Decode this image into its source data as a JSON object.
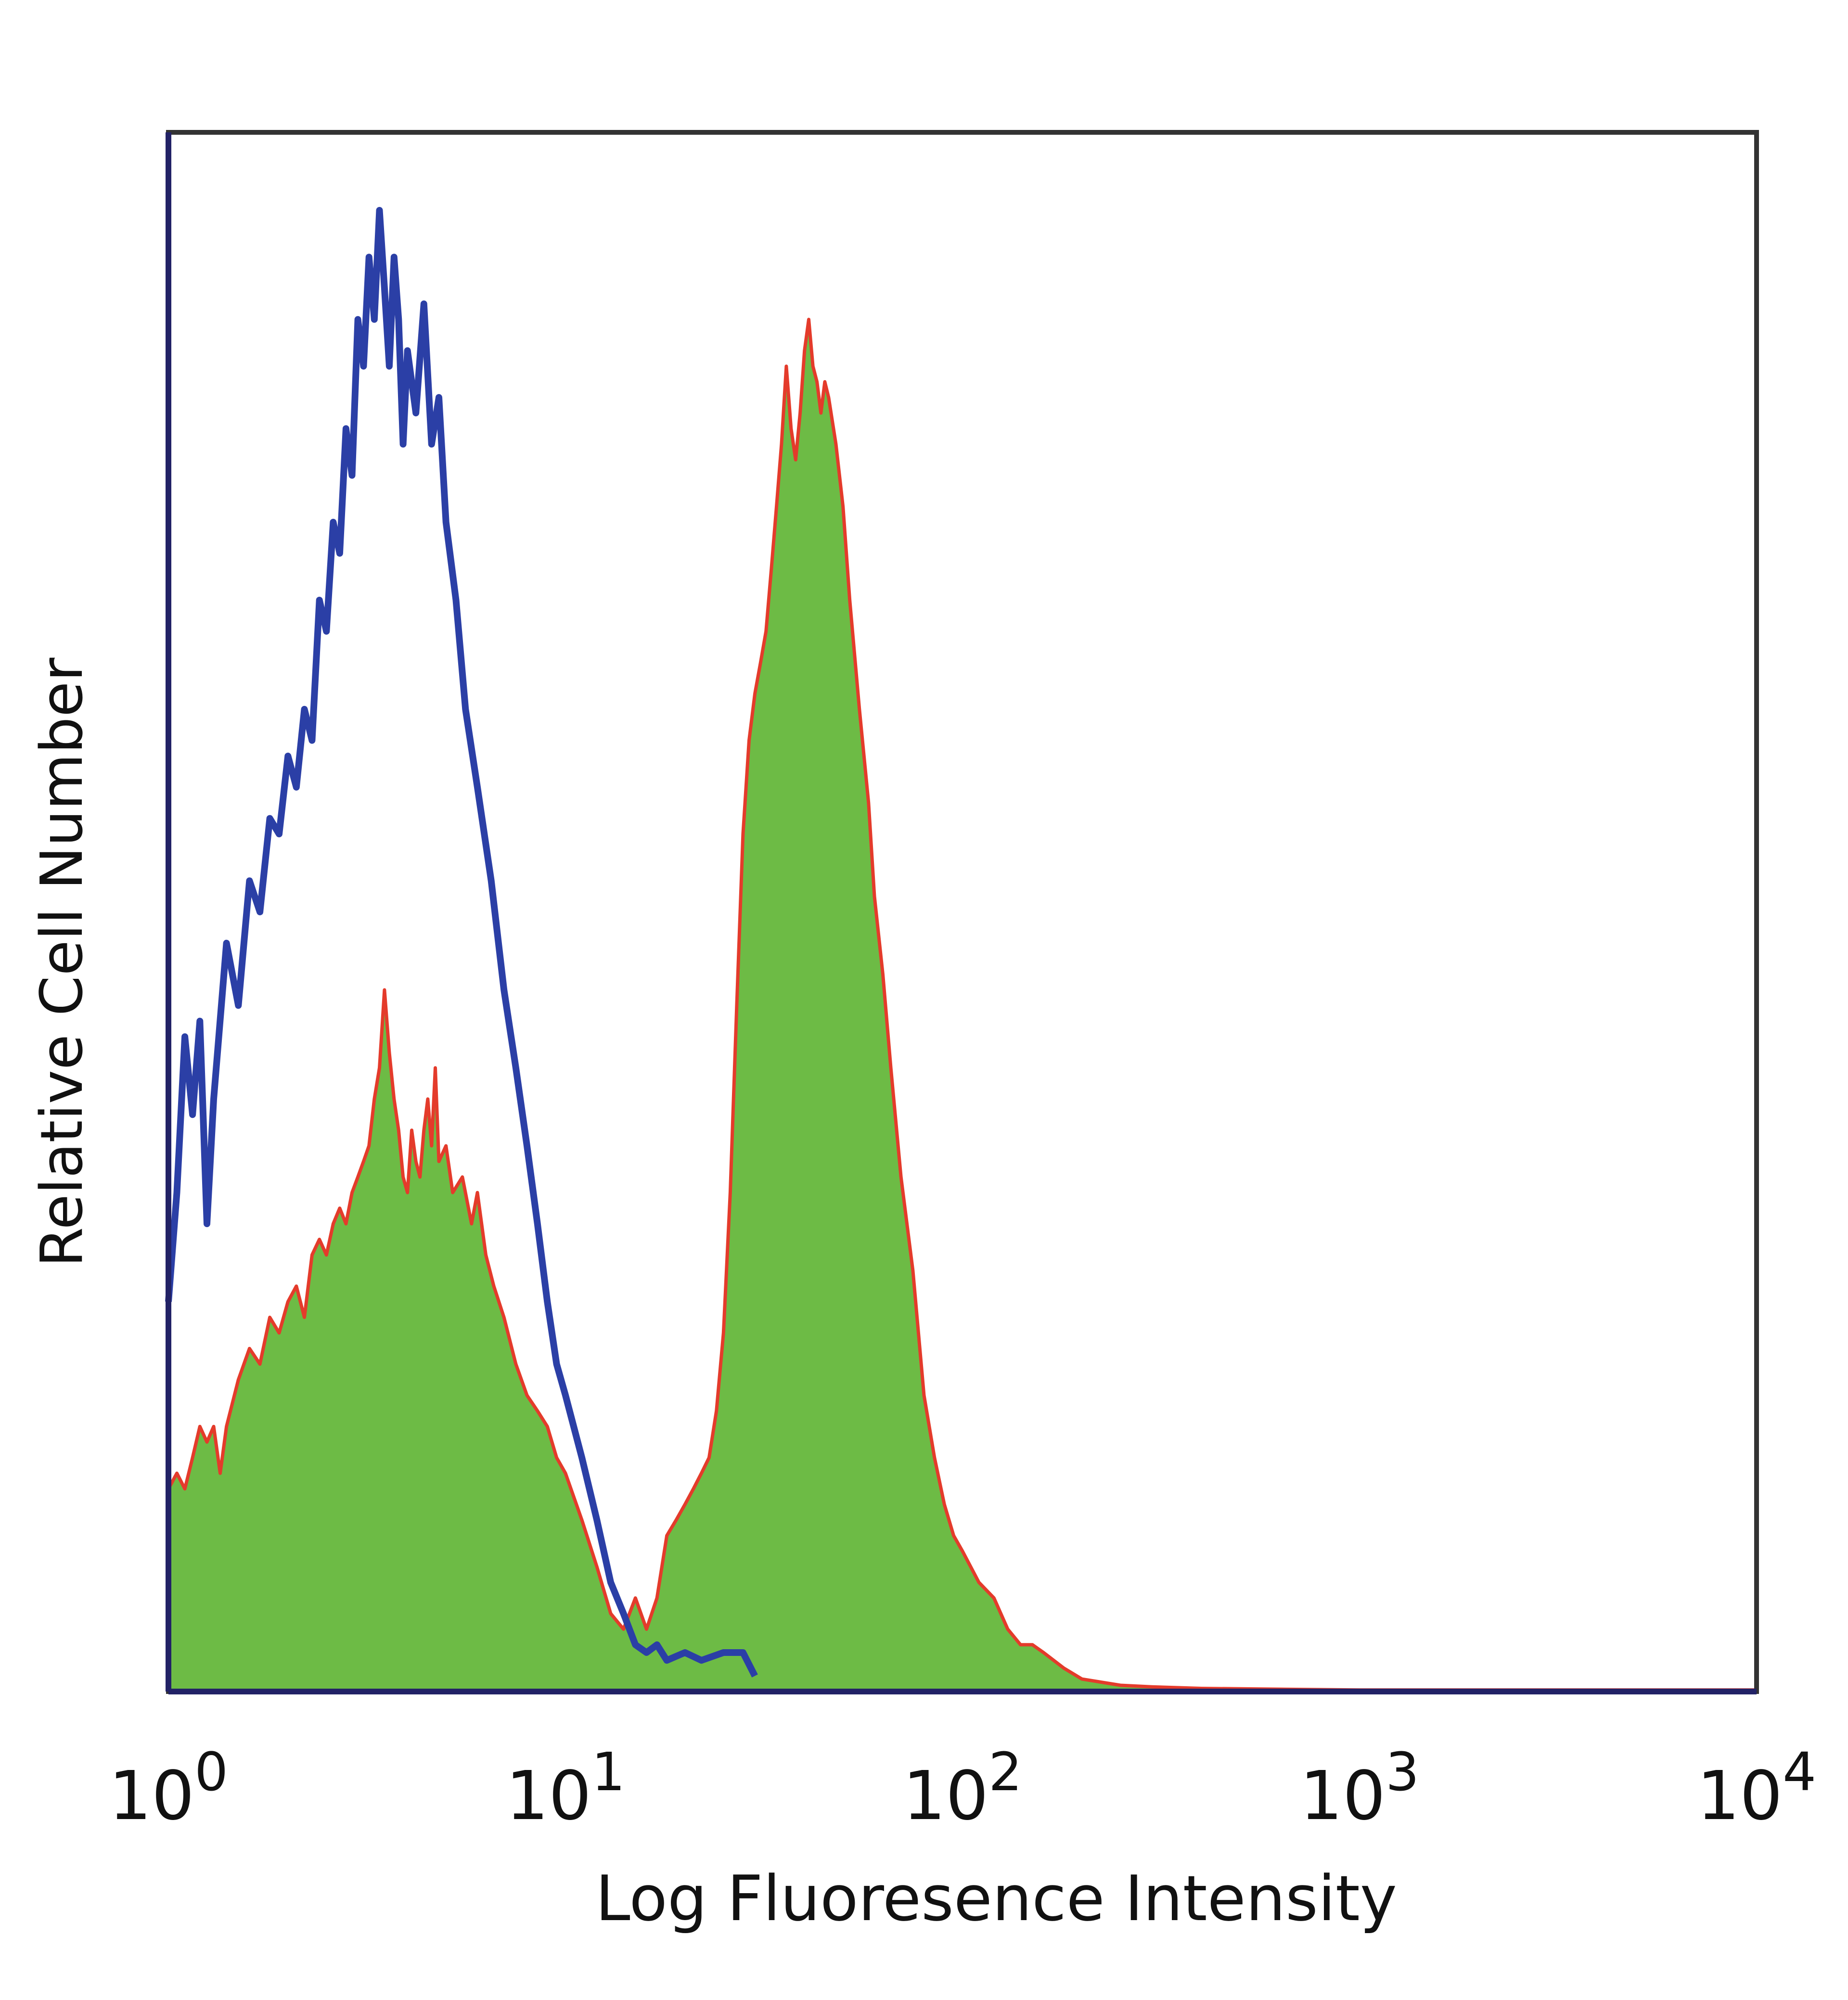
{
  "chart_data": {
    "type": "area",
    "xlabel": "Log Fluoresence Intensity",
    "ylabel": "Relative Cell Number",
    "x_scale": "log",
    "xlim": [
      1,
      10000
    ],
    "ylim": [
      0,
      100
    ],
    "grid": false,
    "x_ticks": [
      {
        "base": "10",
        "exp": "0",
        "value": 1
      },
      {
        "base": "10",
        "exp": "1",
        "value": 10
      },
      {
        "base": "10",
        "exp": "2",
        "value": 100
      },
      {
        "base": "10",
        "exp": "3",
        "value": 1000
      },
      {
        "base": "10",
        "exp": "4",
        "value": 10000
      }
    ],
    "colors": {
      "frame": "#333333",
      "baseline": "#222266",
      "control_line": "#2b3fa6",
      "sample_fill": "#6dbb45",
      "sample_edge": "#e43b2b"
    },
    "series": [
      {
        "style": "outline",
        "color": "#2b3fa6",
        "points": [
          [
            1.0,
            25
          ],
          [
            1.05,
            32
          ],
          [
            1.1,
            42
          ],
          [
            1.15,
            37
          ],
          [
            1.2,
            43
          ],
          [
            1.25,
            30
          ],
          [
            1.3,
            38
          ],
          [
            1.4,
            48
          ],
          [
            1.5,
            44
          ],
          [
            1.6,
            52
          ],
          [
            1.7,
            50
          ],
          [
            1.8,
            56
          ],
          [
            1.9,
            55
          ],
          [
            2.0,
            60
          ],
          [
            2.1,
            58
          ],
          [
            2.2,
            63
          ],
          [
            2.3,
            61
          ],
          [
            2.4,
            70
          ],
          [
            2.5,
            68
          ],
          [
            2.6,
            75
          ],
          [
            2.7,
            73
          ],
          [
            2.8,
            81
          ],
          [
            2.9,
            78
          ],
          [
            3.0,
            88
          ],
          [
            3.1,
            85
          ],
          [
            3.2,
            92
          ],
          [
            3.3,
            88
          ],
          [
            3.4,
            95
          ],
          [
            3.5,
            90
          ],
          [
            3.6,
            85
          ],
          [
            3.7,
            92
          ],
          [
            3.8,
            88
          ],
          [
            3.9,
            80
          ],
          [
            4.0,
            86
          ],
          [
            4.2,
            82
          ],
          [
            4.4,
            89
          ],
          [
            4.6,
            80
          ],
          [
            4.8,
            83
          ],
          [
            5.0,
            75
          ],
          [
            5.3,
            70
          ],
          [
            5.6,
            63
          ],
          [
            6.0,
            58
          ],
          [
            6.5,
            52
          ],
          [
            7.0,
            45
          ],
          [
            7.5,
            40
          ],
          [
            8.0,
            35
          ],
          [
            8.5,
            30
          ],
          [
            9.0,
            25
          ],
          [
            9.5,
            21
          ],
          [
            10.0,
            19
          ],
          [
            11.0,
            15
          ],
          [
            12.0,
            11
          ],
          [
            13.0,
            7
          ],
          [
            14.0,
            5
          ],
          [
            15.0,
            3
          ],
          [
            16.0,
            2.5
          ],
          [
            17.0,
            3
          ],
          [
            18.0,
            2
          ],
          [
            20.0,
            2.5
          ],
          [
            22.0,
            2
          ],
          [
            25.0,
            2.5
          ],
          [
            28.0,
            2.5
          ],
          [
            30.0,
            1
          ]
        ]
      },
      {
        "style": "filled",
        "color": "#6dbb45",
        "edge_color": "#e43b2b",
        "points": [
          [
            1.0,
            13
          ],
          [
            1.05,
            14
          ],
          [
            1.1,
            13
          ],
          [
            1.15,
            15
          ],
          [
            1.2,
            17
          ],
          [
            1.25,
            16
          ],
          [
            1.3,
            17
          ],
          [
            1.35,
            14
          ],
          [
            1.4,
            17
          ],
          [
            1.5,
            20
          ],
          [
            1.6,
            22
          ],
          [
            1.7,
            21
          ],
          [
            1.8,
            24
          ],
          [
            1.9,
            23
          ],
          [
            2.0,
            25
          ],
          [
            2.1,
            26
          ],
          [
            2.2,
            24
          ],
          [
            2.3,
            28
          ],
          [
            2.4,
            29
          ],
          [
            2.5,
            28
          ],
          [
            2.6,
            30
          ],
          [
            2.7,
            31
          ],
          [
            2.8,
            30
          ],
          [
            2.9,
            32
          ],
          [
            3.0,
            33
          ],
          [
            3.1,
            34
          ],
          [
            3.2,
            35
          ],
          [
            3.3,
            38
          ],
          [
            3.4,
            40
          ],
          [
            3.5,
            45
          ],
          [
            3.6,
            41
          ],
          [
            3.7,
            38
          ],
          [
            3.8,
            36
          ],
          [
            3.9,
            33
          ],
          [
            4.0,
            32
          ],
          [
            4.1,
            36
          ],
          [
            4.2,
            34
          ],
          [
            4.3,
            33
          ],
          [
            4.4,
            36
          ],
          [
            4.5,
            38
          ],
          [
            4.6,
            35
          ],
          [
            4.7,
            40
          ],
          [
            4.8,
            34
          ],
          [
            5.0,
            35
          ],
          [
            5.2,
            32
          ],
          [
            5.5,
            33
          ],
          [
            5.8,
            30
          ],
          [
            6.0,
            32
          ],
          [
            6.3,
            28
          ],
          [
            6.6,
            26
          ],
          [
            7.0,
            24
          ],
          [
            7.5,
            21
          ],
          [
            8.0,
            19
          ],
          [
            8.5,
            18
          ],
          [
            9.0,
            17
          ],
          [
            9.5,
            15
          ],
          [
            10.0,
            14
          ],
          [
            11.0,
            11
          ],
          [
            12.0,
            8
          ],
          [
            13.0,
            5
          ],
          [
            14.0,
            4
          ],
          [
            15.0,
            6
          ],
          [
            16.0,
            4
          ],
          [
            17.0,
            6
          ],
          [
            18.0,
            10
          ],
          [
            19.0,
            11
          ],
          [
            20.0,
            12
          ],
          [
            21.0,
            13
          ],
          [
            22.0,
            14
          ],
          [
            23.0,
            15
          ],
          [
            24.0,
            18
          ],
          [
            25.0,
            23
          ],
          [
            26.0,
            32
          ],
          [
            27.0,
            44
          ],
          [
            28.0,
            55
          ],
          [
            29.0,
            61
          ],
          [
            30.0,
            64
          ],
          [
            31.0,
            66
          ],
          [
            32.0,
            68
          ],
          [
            33.0,
            72
          ],
          [
            34.0,
            76
          ],
          [
            35.0,
            80
          ],
          [
            36.0,
            85
          ],
          [
            37.0,
            81
          ],
          [
            38.0,
            79
          ],
          [
            39.0,
            82
          ],
          [
            40.0,
            86
          ],
          [
            41.0,
            88
          ],
          [
            42.0,
            85
          ],
          [
            43.0,
            84
          ],
          [
            44.0,
            82
          ],
          [
            45.0,
            84
          ],
          [
            46.0,
            83
          ],
          [
            48.0,
            80
          ],
          [
            50.0,
            76
          ],
          [
            52.0,
            70
          ],
          [
            55.0,
            63
          ],
          [
            58.0,
            57
          ],
          [
            60.0,
            51
          ],
          [
            63.0,
            46
          ],
          [
            66.0,
            40
          ],
          [
            70.0,
            33
          ],
          [
            75.0,
            27
          ],
          [
            80.0,
            19
          ],
          [
            85.0,
            15
          ],
          [
            90.0,
            12
          ],
          [
            95.0,
            10
          ],
          [
            100.0,
            9
          ],
          [
            110.0,
            7
          ],
          [
            120.0,
            6
          ],
          [
            130.0,
            4
          ],
          [
            140.0,
            3
          ],
          [
            150.0,
            3
          ],
          [
            160.0,
            2.5
          ],
          [
            180.0,
            1.5
          ],
          [
            200.0,
            0.8
          ],
          [
            250.0,
            0.4
          ],
          [
            300.0,
            0.3
          ],
          [
            400.0,
            0.2
          ],
          [
            1000.0,
            0.1
          ],
          [
            2000.0,
            0.1
          ],
          [
            5000.0,
            0.1
          ],
          [
            7000.0,
            0.1
          ],
          [
            10000.0,
            0.1
          ]
        ]
      }
    ]
  }
}
